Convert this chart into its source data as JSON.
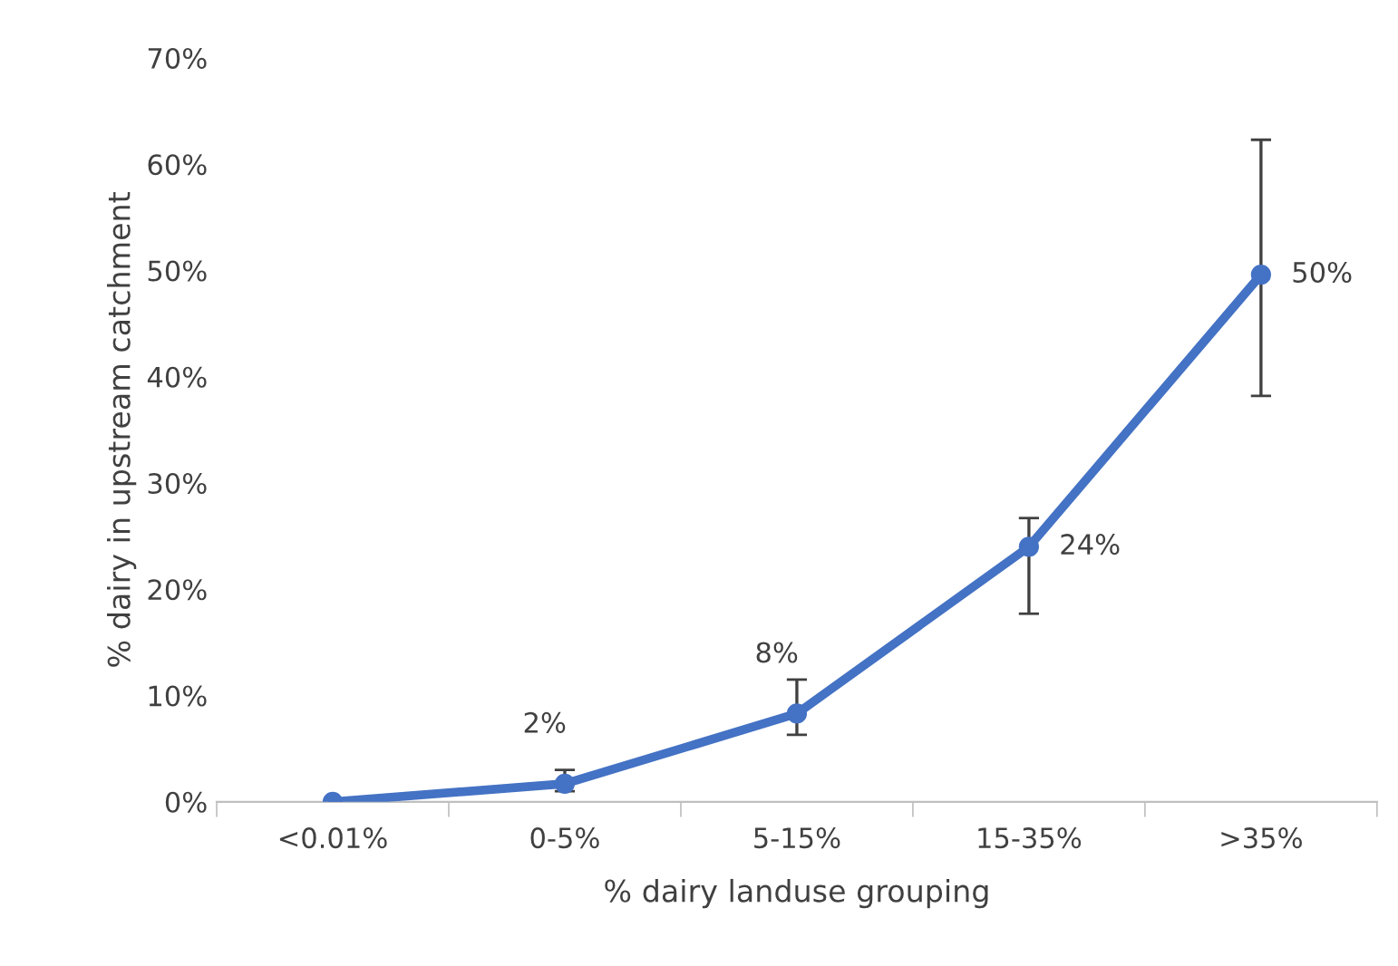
{
  "chart_data": {
    "type": "line",
    "xlabel": "% dairy landuse grouping",
    "ylabel": "% dairy in upstream catchment",
    "categories": [
      "<0.01%",
      "0-5%",
      "5-15%",
      "15-35%",
      ">35%"
    ],
    "values": [
      0,
      1.7,
      8.3,
      24,
      49.6
    ],
    "errors": [
      null,
      [
        1.0,
        3.0
      ],
      [
        6.3,
        11.5
      ],
      [
        17.7,
        26.7
      ],
      [
        38.2,
        62.3
      ]
    ],
    "value_labels": [
      null,
      "2%",
      "8%",
      "24%",
      "50%"
    ],
    "color": "#4472c4",
    "marker": "circle",
    "line_style": "solid",
    "grid": false,
    "legend": false,
    "ylim": [
      0,
      70
    ],
    "yticks": [
      {
        "value": 0,
        "label": "0%"
      },
      {
        "value": 10,
        "label": "10%"
      },
      {
        "value": 20,
        "label": "20%"
      },
      {
        "value": 30,
        "label": "30%"
      },
      {
        "value": 40,
        "label": "40%"
      },
      {
        "value": 50,
        "label": "50%"
      },
      {
        "value": 60,
        "label": "60%"
      },
      {
        "value": 70,
        "label": "70%"
      }
    ]
  }
}
